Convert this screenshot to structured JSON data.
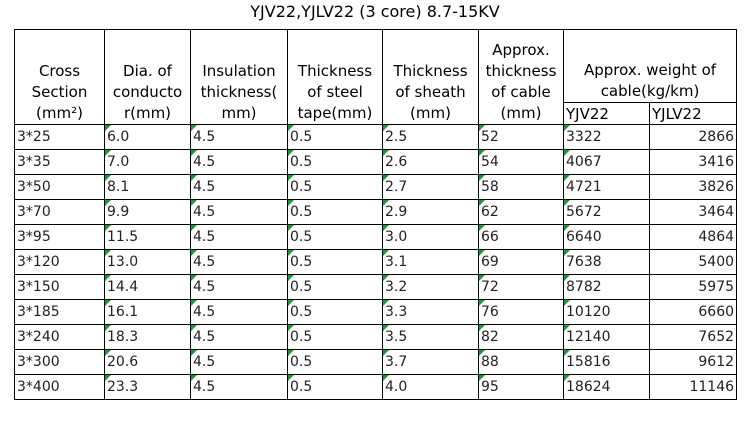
{
  "title": "YJV22,YJLV22  (3 core) 8.7-15KV",
  "table": {
    "header": [
      [
        "Cross",
        "Section",
        "(mm²)"
      ],
      [
        "Dia. of",
        "conducto",
        "r(mm)"
      ],
      [
        "Insulation",
        "thickness(",
        "mm)"
      ],
      [
        "Thickness",
        "of steel",
        "tape(mm)"
      ],
      [
        "Thickness",
        "of sheath",
        "(mm)"
      ],
      [
        "Approx.",
        "thickness",
        "of cable",
        "(mm)"
      ],
      [
        "Approx. weight of",
        "cable(kg/km)"
      ]
    ],
    "subheader": [
      "YJV22",
      "YJLV22"
    ],
    "rows": [
      [
        "3*25",
        "6.0",
        "4.5",
        "0.5",
        "2.5",
        "52",
        "3322",
        "2866"
      ],
      [
        "3*35",
        "7.0",
        "4.5",
        "0.5",
        "2.6",
        "54",
        "4067",
        "3416"
      ],
      [
        "3*50",
        "8.1",
        "4.5",
        "0.5",
        "2.7",
        "58",
        "4721",
        "3826"
      ],
      [
        "3*70",
        "9.9",
        "4.5",
        "0.5",
        "2.9",
        "62",
        "5672",
        "3464"
      ],
      [
        "3*95",
        "11.5",
        "4.5",
        "0.5",
        "3.0",
        "66",
        "6640",
        "4864"
      ],
      [
        "3*120",
        "13.0",
        "4.5",
        "0.5",
        "3.1",
        "69",
        "7638",
        "5400"
      ],
      [
        "3*150",
        "14.4",
        "4.5",
        "0.5",
        "3.2",
        "72",
        "8782",
        "5975"
      ],
      [
        "3*185",
        "16.1",
        "4.5",
        "0.5",
        "3.3",
        "76",
        "10120",
        "6660"
      ],
      [
        "3*240",
        "18.3",
        "4.5",
        "0.5",
        "3.5",
        "82",
        "12140",
        "7652"
      ],
      [
        "3*300",
        "20.6",
        "4.5",
        "0.5",
        "3.7",
        "88",
        "15816",
        "9612"
      ],
      [
        "3*400",
        "23.3",
        "4.5",
        "0.5",
        "4.0",
        "95",
        "18624",
        "11146"
      ]
    ]
  }
}
